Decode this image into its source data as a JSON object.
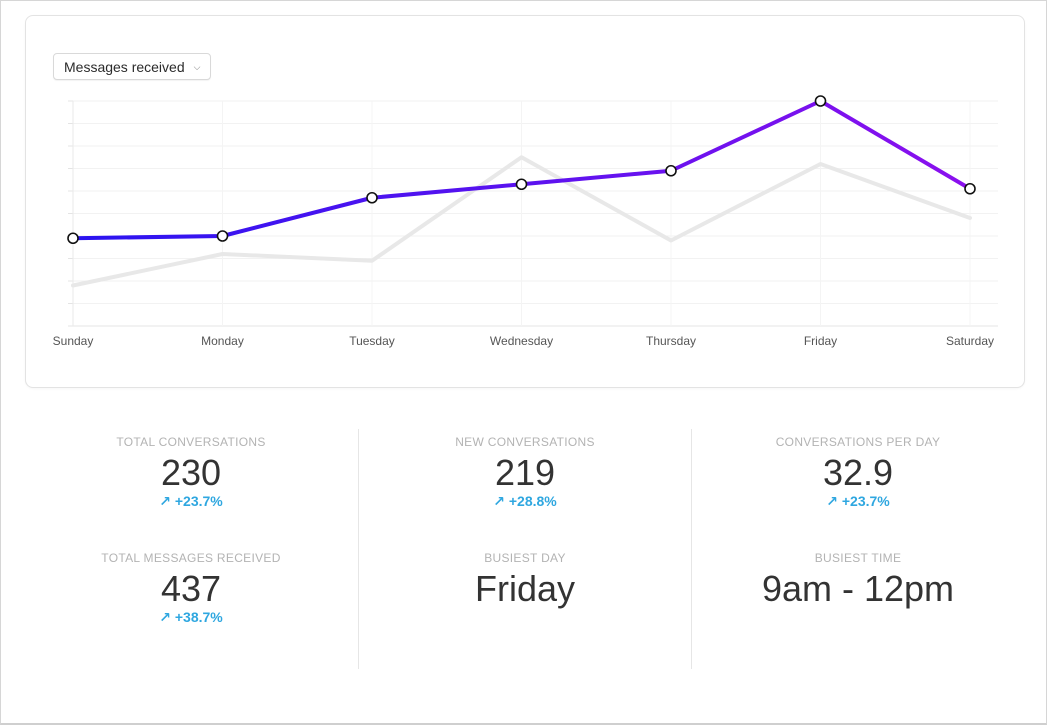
{
  "selector": {
    "label": "Messages received",
    "chevron_icon": "chevron-down-icon"
  },
  "chart_data": {
    "type": "line",
    "categories": [
      "Sunday",
      "Monday",
      "Tuesday",
      "Wednesday",
      "Thursday",
      "Friday",
      "Saturday"
    ],
    "ylim": [
      0,
      100
    ],
    "grid": true,
    "series": [
      {
        "values": [
          39,
          40,
          57,
          63,
          69,
          100,
          61
        ],
        "colors": {
          "start": "#2a14f0",
          "end": "#8b10ee"
        },
        "markers": true
      },
      {
        "values": [
          18,
          32,
          29,
          75,
          38,
          72,
          48
        ],
        "color": "#e8e8e8",
        "markers": false
      }
    ]
  },
  "stats": {
    "total_conversations": {
      "label": "TOTAL CONVERSATIONS",
      "value": "230",
      "change": "+23.7%"
    },
    "new_conversations": {
      "label": "NEW CONVERSATIONS",
      "value": "219",
      "change": "+28.8%"
    },
    "conversations_per_day": {
      "label": "CONVERSATIONS PER DAY",
      "value": "32.9",
      "change": "+23.7%"
    },
    "total_messages_received": {
      "label": "TOTAL MESSAGES RECEIVED",
      "value": "437",
      "change": "+38.7%"
    },
    "busiest_day": {
      "label": "BUSIEST DAY",
      "value": "Friday"
    },
    "busiest_time": {
      "label": "BUSIEST TIME",
      "value": "9am - 12pm"
    }
  },
  "change_icon": "arrow-up-right-icon",
  "colors": {
    "accent": "#2fa7e0",
    "label": "#b3b3b3",
    "value": "#333333"
  }
}
